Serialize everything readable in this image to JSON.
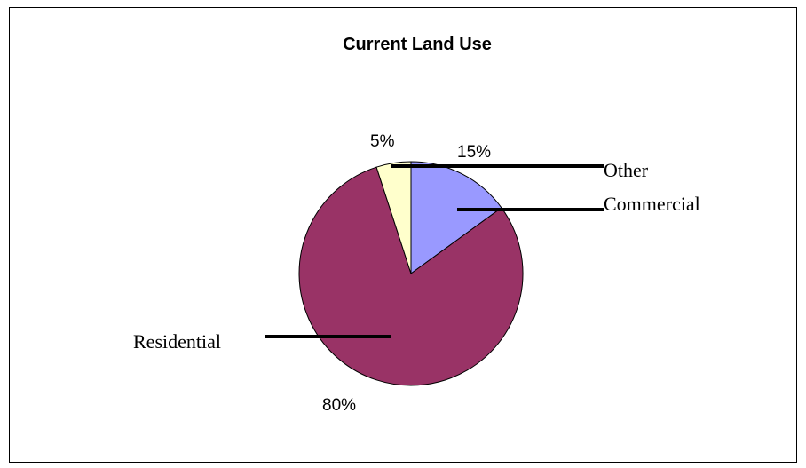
{
  "chart_data": {
    "type": "pie",
    "title": "Current Land Use",
    "slices": [
      {
        "category": "Commercial",
        "value": 15,
        "label": "15%",
        "color": "#9999ff"
      },
      {
        "category": "Residential",
        "value": 80,
        "label": "80%",
        "color": "#993366"
      },
      {
        "category": "Other",
        "value": 5,
        "label": "5%",
        "color": "#ffffcc"
      }
    ],
    "start_angle_deg": 0,
    "direction": "clockwise",
    "legend": "none"
  }
}
